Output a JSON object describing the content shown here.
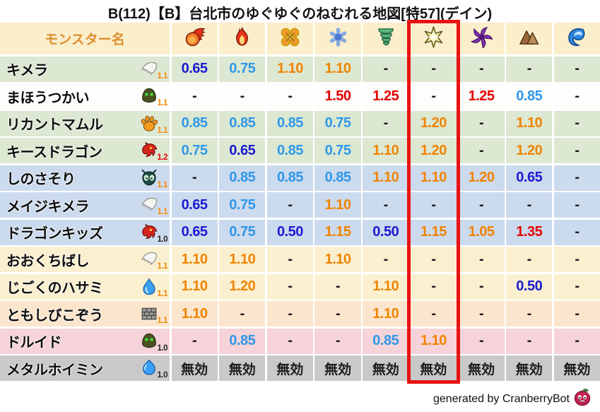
{
  "title": "B(112)【B】台北市のゆぐゆぐのねむれる地図[特57](デイン)",
  "header": {
    "monster_col_label": "モンスター名",
    "element_columns": [
      {
        "id": "fire",
        "icon": "fireball-icon"
      },
      {
        "id": "flame",
        "icon": "flame-icon"
      },
      {
        "id": "explosion",
        "icon": "explosion-icon"
      },
      {
        "id": "ice",
        "icon": "snowflake-icon"
      },
      {
        "id": "wind",
        "icon": "tornado-icon"
      },
      {
        "id": "lightning",
        "icon": "spark-icon"
      },
      {
        "id": "dark",
        "icon": "dark-pinwheel-icon"
      },
      {
        "id": "earth",
        "icon": "mountain-icon"
      },
      {
        "id": "water",
        "icon": "wave-icon"
      }
    ]
  },
  "highlight": {
    "column_index": 5,
    "color": "#e81212"
  },
  "chart_data": {
    "type": "table",
    "columns": [
      "monster-name",
      "fire",
      "flame",
      "explosion",
      "ice",
      "wind",
      "lightning",
      "dark",
      "earth",
      "water"
    ],
    "rows": [
      {
        "name": "キメラ",
        "icon": "wing-icon",
        "badge": "1.1",
        "badge_color": "orange",
        "row_color": "green",
        "values": [
          "0.65",
          "0.75",
          "1.10",
          "1.10",
          "-",
          "-",
          "-",
          "-",
          "-"
        ]
      },
      {
        "name": "まほうつかい",
        "icon": "hood-icon",
        "badge": "1.1",
        "badge_color": "orange",
        "row_color": "white",
        "values": [
          "-",
          "-",
          "-",
          "1.50",
          "1.25",
          "-",
          "1.25",
          "0.85",
          "-"
        ]
      },
      {
        "name": "リカントマムル",
        "icon": "paw-icon",
        "badge": "1.1",
        "badge_color": "orange",
        "row_color": "green",
        "values": [
          "0.85",
          "0.85",
          "0.85",
          "0.75",
          "-",
          "1.20",
          "-",
          "1.10",
          "-"
        ]
      },
      {
        "name": "キースドラゴン",
        "icon": "dragon-icon",
        "badge": "1.2",
        "badge_color": "red",
        "row_color": "green",
        "values": [
          "0.75",
          "0.65",
          "0.85",
          "0.75",
          "1.10",
          "1.20",
          "-",
          "1.20",
          "-"
        ]
      },
      {
        "name": "しのさそり",
        "icon": "bug-icon",
        "badge": "1.1",
        "badge_color": "orange",
        "row_color": "blue",
        "values": [
          "-",
          "0.85",
          "0.85",
          "0.85",
          "1.10",
          "1.10",
          "1.20",
          "0.65",
          "-"
        ]
      },
      {
        "name": "メイジキメラ",
        "icon": "wing-icon",
        "badge": "1.1",
        "badge_color": "orange",
        "row_color": "blue",
        "values": [
          "0.65",
          "0.75",
          "-",
          "1.10",
          "-",
          "-",
          "-",
          "-",
          "-"
        ]
      },
      {
        "name": "ドラゴンキッズ",
        "icon": "dragon-icon",
        "badge": "1.0",
        "badge_color": "black",
        "row_color": "blue",
        "values": [
          "0.65",
          "0.75",
          "0.50",
          "1.15",
          "0.50",
          "1.15",
          "1.05",
          "1.35",
          "-"
        ]
      },
      {
        "name": "おおくちばし",
        "icon": "wing-icon",
        "badge": "1.1",
        "badge_color": "orange",
        "row_color": "cream",
        "values": [
          "1.10",
          "1.10",
          "-",
          "1.10",
          "-",
          "-",
          "-",
          "-",
          "-"
        ]
      },
      {
        "name": "じごくのハサミ",
        "icon": "drop-icon",
        "badge": "1.1",
        "badge_color": "orange",
        "row_color": "cream",
        "values": [
          "1.10",
          "1.20",
          "-",
          "-",
          "1.10",
          "-",
          "-",
          "0.50",
          "-"
        ]
      },
      {
        "name": "ともしびこぞう",
        "icon": "wall-icon",
        "badge": "1.1",
        "badge_color": "orange",
        "row_color": "peach",
        "values": [
          "1.10",
          "-",
          "-",
          "-",
          "1.10",
          "-",
          "-",
          "-",
          "-"
        ]
      },
      {
        "name": "ドルイド",
        "icon": "hood-icon",
        "badge": "1.0",
        "badge_color": "black",
        "row_color": "pink",
        "values": [
          "-",
          "0.85",
          "-",
          "-",
          "0.85",
          "1.10",
          "-",
          "-",
          "-"
        ]
      },
      {
        "name": "メタルホイミン",
        "icon": "slime-icon",
        "badge": "1.0",
        "badge_color": "black",
        "row_color": "gray",
        "values": [
          "無効",
          "無効",
          "無効",
          "無効",
          "無効",
          "無効",
          "無効",
          "無効",
          "無効"
        ]
      }
    ]
  },
  "colors": {
    "header_bg": "#faeecb",
    "header_text": "#dd8f2f",
    "row_colors": {
      "green": "#dce8d2",
      "white": "#fdfdfb",
      "blue": "#ccdaee",
      "cream": "#faf0d0",
      "peach": "#fbe5cd",
      "pink": "#f5d3d8",
      "gray": "#c9c9c9"
    },
    "value_colors": {
      "strong_resist": "#1b1bd0",
      "resist": "#2f97e8",
      "weak": "#f08400",
      "very_weak": "#e30000",
      "neutral": "#1a1a1a"
    },
    "badge_colors": {
      "orange": "#f08400",
      "red": "#e30000",
      "black": "#1a1a1a"
    }
  },
  "footer": {
    "credit": "generated by CranberryBot",
    "icon": "cranberry-icon"
  }
}
